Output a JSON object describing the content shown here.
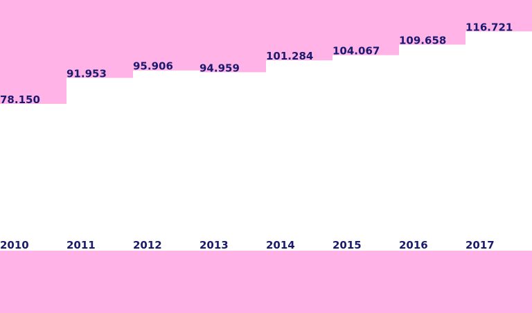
{
  "colors": {
    "background": "#ffb3e6",
    "bar": "#ffffff",
    "text": "#1a1a6e"
  },
  "chart_data": {
    "type": "bar",
    "categories": [
      "2010",
      "2011",
      "2012",
      "2013",
      "2014",
      "2015",
      "2016",
      "2017"
    ],
    "values": [
      78.15,
      91.953,
      95.906,
      94.959,
      101.284,
      104.067,
      109.658,
      116.721
    ],
    "value_labels": [
      "78.150",
      "91.953",
      "95.906",
      "94.959",
      "101.284",
      "104.067",
      "109.658",
      "116.721"
    ],
    "title": "",
    "xlabel": "",
    "ylabel": "",
    "ylim": [
      0,
      133.4
    ],
    "grid": false,
    "legend": "none"
  }
}
